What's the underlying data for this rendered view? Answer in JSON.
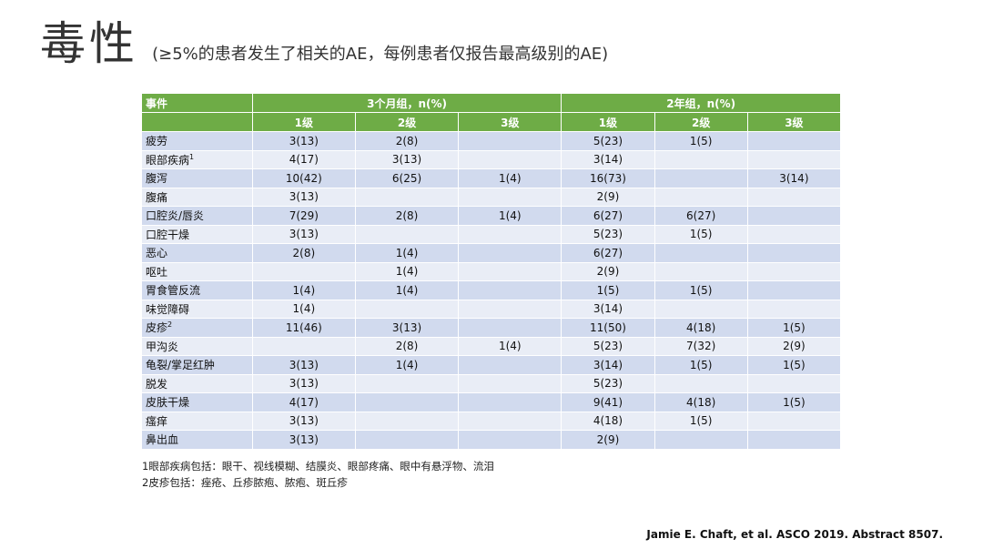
{
  "title": {
    "main": "毒性",
    "subtitle": "(≥5%的患者发生了相关的AE，每例患者仅报告最高级别的AE)"
  },
  "table": {
    "event_header": "事件",
    "group1_header": "3个月组，n(%)",
    "group2_header": "2年组，n(%)",
    "grade_labels": [
      "1级",
      "2级",
      "3级",
      "1级",
      "2级",
      "3级"
    ],
    "rows": [
      {
        "name": "疲劳",
        "sup": "",
        "cells": [
          "3(13)",
          "2(8)",
          "",
          "5(23)",
          "1(5)",
          ""
        ]
      },
      {
        "name": "眼部疾病",
        "sup": "1",
        "cells": [
          "4(17)",
          "3(13)",
          "",
          "3(14)",
          "",
          ""
        ]
      },
      {
        "name": "腹泻",
        "sup": "",
        "cells": [
          "10(42)",
          "6(25)",
          "1(4)",
          "16(73)",
          "",
          "3(14)"
        ]
      },
      {
        "name": "腹痛",
        "sup": "",
        "cells": [
          "3(13)",
          "",
          "",
          "2(9)",
          "",
          ""
        ]
      },
      {
        "name": "口腔炎/唇炎",
        "sup": "",
        "cells": [
          "7(29)",
          "2(8)",
          "1(4)",
          "6(27)",
          "6(27)",
          ""
        ]
      },
      {
        "name": "口腔干燥",
        "sup": "",
        "cells": [
          "3(13)",
          "",
          "",
          "5(23)",
          "1(5)",
          ""
        ]
      },
      {
        "name": "恶心",
        "sup": "",
        "cells": [
          "2(8)",
          "1(4)",
          "",
          "6(27)",
          "",
          ""
        ]
      },
      {
        "name": "呕吐",
        "sup": "",
        "cells": [
          "",
          "1(4)",
          "",
          "2(9)",
          "",
          ""
        ]
      },
      {
        "name": "胃食管反流",
        "sup": "",
        "cells": [
          "1(4)",
          "1(4)",
          "",
          "1(5)",
          "1(5)",
          ""
        ]
      },
      {
        "name": "味觉障碍",
        "sup": "",
        "cells": [
          "1(4)",
          "",
          "",
          "3(14)",
          "",
          ""
        ]
      },
      {
        "name": "皮疹",
        "sup": "2",
        "cells": [
          "11(46)",
          "3(13)",
          "",
          "11(50)",
          "4(18)",
          "1(5)"
        ]
      },
      {
        "name": "甲沟炎",
        "sup": "",
        "cells": [
          "",
          "2(8)",
          "1(4)",
          "5(23)",
          "7(32)",
          "2(9)"
        ]
      },
      {
        "name": "龟裂/掌足红肿",
        "sup": "",
        "cells": [
          "3(13)",
          "1(4)",
          "",
          "3(14)",
          "1(5)",
          "1(5)"
        ]
      },
      {
        "name": "脱发",
        "sup": "",
        "cells": [
          "3(13)",
          "",
          "",
          "5(23)",
          "",
          ""
        ]
      },
      {
        "name": "皮肤干燥",
        "sup": "",
        "cells": [
          "4(17)",
          "",
          "",
          "9(41)",
          "4(18)",
          "1(5)"
        ]
      },
      {
        "name": "瘙痒",
        "sup": "",
        "cells": [
          "3(13)",
          "",
          "",
          "4(18)",
          "1(5)",
          ""
        ]
      },
      {
        "name": "鼻出血",
        "sup": "",
        "cells": [
          "3(13)",
          "",
          "",
          "2(9)",
          "",
          ""
        ]
      }
    ]
  },
  "footnotes": [
    "1眼部疾病包括：眼干、视线模糊、结膜炎、眼部疼痛、眼中有悬浮物、流泪",
    "2皮疹包括：痤疮、丘疹脓疱、脓疱、斑丘疹"
  ],
  "citation": "Jamie E. Chaft, et al. ASCO 2019. Abstract 8507.",
  "colors": {
    "header_green": "#6eac46",
    "row_dark": "#d1daee",
    "row_light": "#e9edf6"
  }
}
